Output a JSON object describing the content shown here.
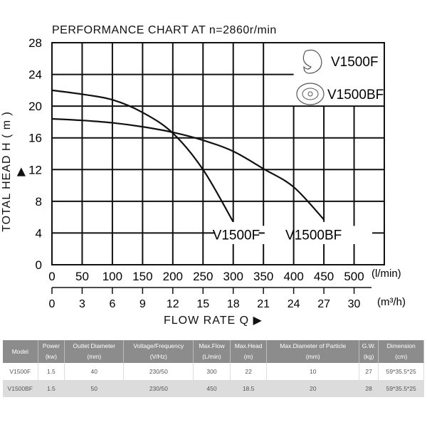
{
  "chart_data": {
    "type": "line",
    "title": "PERFORMANCE  CHART  AT  n=2860r/min",
    "ylabel": "TOTAL HEAD  H ( m ) ▶",
    "xlabel": "FLOW  RATE  Q  ▶",
    "x_unit": "(l/min)",
    "x2_unit": "(m³/h)",
    "xlim": [
      0,
      550
    ],
    "ylim": [
      0,
      28
    ],
    "grid": true,
    "x_ticks": [
      "0",
      "50",
      "100",
      "150",
      "200",
      "250",
      "300",
      "350",
      "400",
      "450",
      "500"
    ],
    "x2_ticks": [
      "0",
      "3",
      "6",
      "9",
      "12",
      "15",
      "18",
      "21",
      "24",
      "27",
      "30"
    ],
    "y_ticks": [
      "0",
      "4",
      "8",
      "12",
      "16",
      "20",
      "24",
      "28"
    ],
    "legend": {
      "placement": "top-right",
      "entries": [
        {
          "label": "V1500F",
          "icon": "open-impeller-icon"
        },
        {
          "label": "V1500BF",
          "icon": "vortex-impeller-icon"
        }
      ]
    },
    "series": [
      {
        "name": "V1500F",
        "x": [
          0,
          50,
          100,
          150,
          200,
          250,
          300
        ],
        "y": [
          22,
          21.5,
          20.8,
          19.2,
          16.6,
          12.0,
          5.4
        ]
      },
      {
        "name": "V1500BF",
        "x": [
          0,
          50,
          100,
          150,
          200,
          250,
          300,
          350,
          400,
          450
        ],
        "y": [
          18.4,
          18.2,
          17.9,
          17.4,
          16.7,
          15.7,
          14.3,
          12.1,
          9.8,
          5.7
        ]
      }
    ]
  },
  "table": {
    "headers": [
      [
        "Model",
        ""
      ],
      [
        "Power",
        "(kw)"
      ],
      [
        "Outlet Diameter",
        "(mm)"
      ],
      [
        "Voltage/Frequency",
        "(V/Hz)"
      ],
      [
        "Max.Flow",
        "(L/min)"
      ],
      [
        "Max.Head",
        "(m)"
      ],
      [
        "Max.Diameter of Particle",
        "(mm)"
      ],
      [
        "G.W.",
        "(kg)"
      ],
      [
        "Dimension",
        "(cm)"
      ]
    ],
    "rows": [
      [
        "V1500F",
        "1.5",
        "40",
        "230/50",
        "300",
        "22",
        "10",
        "27",
        "59*35.5*25"
      ],
      [
        "V1500BF",
        "1.5",
        "50",
        "230/50",
        "450",
        "18.5",
        "20",
        "28",
        "59*35.5*25"
      ]
    ],
    "header_color": "#8c8c8c",
    "alt_row_color": "#dcdcdc"
  }
}
